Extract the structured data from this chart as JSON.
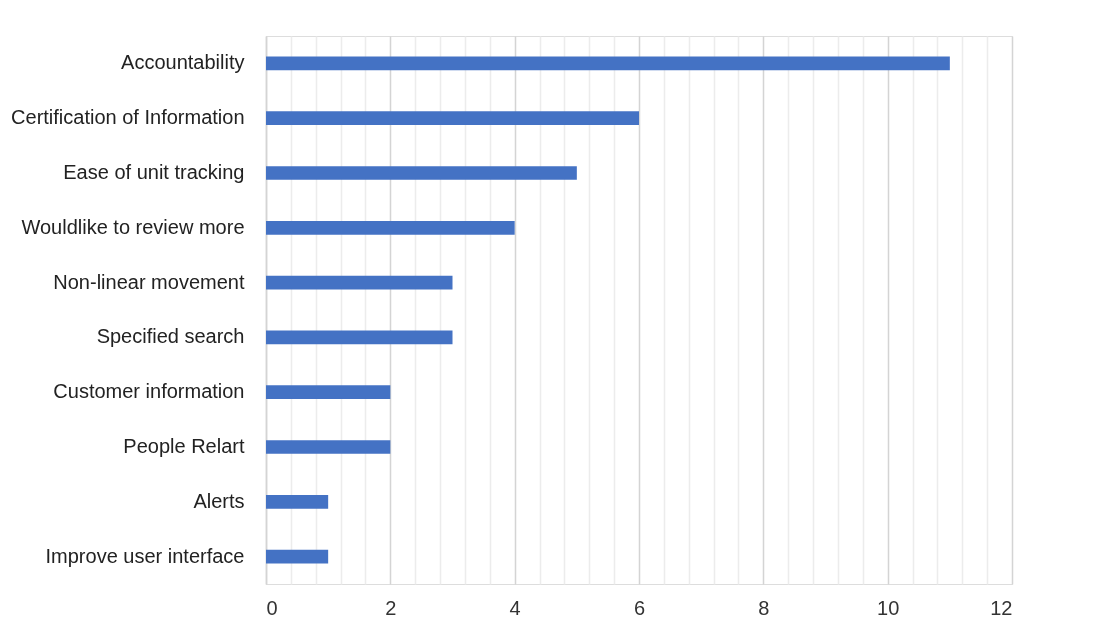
{
  "chart_data": {
    "type": "bar",
    "orientation": "horizontal",
    "categories": [
      "Accountability",
      "Certification of Information",
      "Ease of unit tracking",
      "Wouldlike to review more",
      "Non-linear movement",
      "Specified search",
      "Customer information",
      "People Relart",
      "Alerts ",
      "Improve user interface"
    ],
    "values": [
      11,
      6,
      5,
      4,
      3,
      3,
      2,
      2,
      1,
      1
    ],
    "color": "#4472c4",
    "xlim": [
      0,
      12
    ],
    "xticks": [
      0,
      {
        "value": 0.4,
        "label": null
      },
      {
        "value": 0.8,
        "label": null
      },
      {
        "value": 1.2,
        "label": null
      },
      {
        "value": 1.6,
        "label": null
      },
      2,
      {
        "value": 2.4,
        "label": null
      },
      {
        "value": 2.8,
        "label": null
      },
      {
        "value": 3.2,
        "label": null
      },
      {
        "value": 3.6,
        "label": null
      },
      4,
      {
        "value": 4.4,
        "label": null
      },
      {
        "value": 4.8,
        "label": null
      },
      {
        "value": 5.2,
        "label": null
      },
      {
        "value": 5.6,
        "label": null
      },
      6,
      {
        "value": 6.4,
        "label": null
      },
      {
        "value": 6.8,
        "label": null
      },
      {
        "value": 7.2,
        "label": null
      },
      {
        "value": 7.6,
        "label": null
      },
      8,
      {
        "value": 8.4,
        "label": null
      },
      {
        "value": 8.8,
        "label": null
      },
      {
        "value": 9.2,
        "label": null
      },
      {
        "value": 9.6,
        "label": null
      },
      10,
      {
        "value": 10.4,
        "label": null
      },
      {
        "value": 10.8,
        "label": null
      },
      {
        "value": 11.2,
        "label": null
      },
      {
        "value": 11.6,
        "label": null
      },
      12
    ],
    "grid": "x"
  }
}
